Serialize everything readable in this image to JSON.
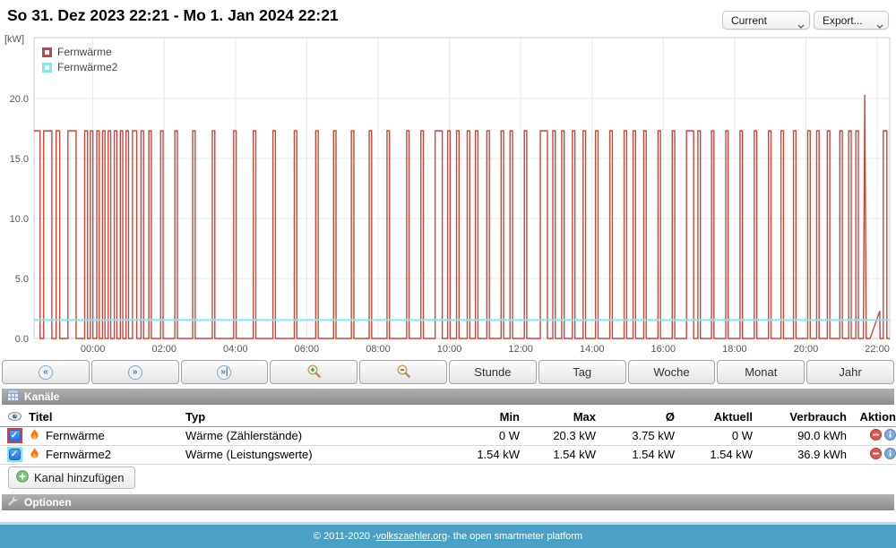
{
  "header": {
    "title": "So 31. Dez 2023 22:21 - Mo 1. Jan 2024 22:21",
    "view_select": {
      "value": "Current"
    },
    "export_select": {
      "value": "Export..."
    }
  },
  "chart_data": {
    "type": "line",
    "title": "",
    "unit_label": "[kW]",
    "xlabel": "",
    "ylabel": "kW",
    "ylim": [
      0,
      25.07
    ],
    "xlim_hours": [
      0,
      24
    ],
    "grid": true,
    "legend_position": "top-left",
    "x_ticks": [
      {
        "label": "00:00",
        "hour": 1.65
      },
      {
        "label": "02:00",
        "hour": 3.65
      },
      {
        "label": "04:00",
        "hour": 5.65
      },
      {
        "label": "06:00",
        "hour": 7.65
      },
      {
        "label": "08:00",
        "hour": 9.65
      },
      {
        "label": "10:00",
        "hour": 11.65
      },
      {
        "label": "12:00",
        "hour": 13.65
      },
      {
        "label": "14:00",
        "hour": 15.65
      },
      {
        "label": "16:00",
        "hour": 17.65
      },
      {
        "label": "18:00",
        "hour": 19.65
      },
      {
        "label": "20:00",
        "hour": 21.65
      },
      {
        "label": "22:00",
        "hour": 23.65
      }
    ],
    "y_ticks": [
      {
        "label": "0.0",
        "value": 0
      },
      {
        "label": "5.0",
        "value": 5
      },
      {
        "label": "10.0",
        "value": 10
      },
      {
        "label": "15.0",
        "value": 15
      },
      {
        "label": "20.0",
        "value": 20
      }
    ],
    "series": [
      {
        "name": "Fernwärme",
        "color": "#c9463c",
        "kind": "square-pulses",
        "pulse_level": 17.3,
        "pulses": [
          [
            0,
            0.17
          ],
          [
            0.27,
            0.5
          ],
          [
            0.62,
            0.72
          ],
          [
            0.95,
            1.18
          ],
          [
            1.42,
            1.5
          ],
          [
            1.58,
            1.65
          ],
          [
            1.76,
            1.83
          ],
          [
            1.92,
            1.99
          ],
          [
            2.08,
            2.15
          ],
          [
            2.25,
            2.32
          ],
          [
            2.42,
            2.49
          ],
          [
            2.58,
            2.65
          ],
          [
            2.76,
            2.88
          ],
          [
            3,
            3.07
          ],
          [
            3.22,
            3.29
          ],
          [
            3.55,
            3.62
          ],
          [
            3.95,
            4.02
          ],
          [
            4.45,
            4.52
          ],
          [
            5,
            5.07
          ],
          [
            5.6,
            5.67
          ],
          [
            6.15,
            6.22
          ],
          [
            6.7,
            6.77
          ],
          [
            7.3,
            7.37
          ],
          [
            7.9,
            7.97
          ],
          [
            8.4,
            8.47
          ],
          [
            8.9,
            8.97
          ],
          [
            9.4,
            9.47
          ],
          [
            9.9,
            9.97
          ],
          [
            10.45,
            10.52
          ],
          [
            10.85,
            10.92
          ],
          [
            11.25,
            11.45
          ],
          [
            11.6,
            11.67
          ],
          [
            11.85,
            11.92
          ],
          [
            12.15,
            12.22
          ],
          [
            12.38,
            12.45
          ],
          [
            12.7,
            12.77
          ],
          [
            13.1,
            13.17
          ],
          [
            13.35,
            13.42
          ],
          [
            13.75,
            13.82
          ],
          [
            14.2,
            14.4
          ],
          [
            14.55,
            14.62
          ],
          [
            14.8,
            14.87
          ],
          [
            15.1,
            15.17
          ],
          [
            15.4,
            15.47
          ],
          [
            15.75,
            15.82
          ],
          [
            16.15,
            16.22
          ],
          [
            16.55,
            16.62
          ],
          [
            16.8,
            16.87
          ],
          [
            17.1,
            17.17
          ],
          [
            17.5,
            17.57
          ],
          [
            17.9,
            17.97
          ],
          [
            18.3,
            18.5
          ],
          [
            18.62,
            18.69
          ],
          [
            19,
            19.07
          ],
          [
            19.4,
            19.47
          ],
          [
            19.8,
            19.87
          ],
          [
            20.2,
            20.27
          ],
          [
            20.6,
            20.67
          ],
          [
            20.95,
            21.02
          ],
          [
            21.3,
            21.37
          ],
          [
            21.7,
            21.77
          ],
          [
            21.95,
            22.02
          ],
          [
            22.25,
            22.32
          ],
          [
            22.6,
            22.67
          ],
          [
            22.85,
            22.92
          ],
          [
            23.05,
            23.12
          ]
        ],
        "spike": {
          "peak_hour": 23.3,
          "value": 20.3,
          "half_width_hours": 0.04
        },
        "ramp": {
          "start_hour": 23.45,
          "end_hour": 23.72,
          "peak_value": 2.3
        },
        "end_pulse": [
          23.82,
          23.92
        ]
      },
      {
        "name": "Fernwärme2",
        "color": "#7fe9ee",
        "kind": "constant",
        "value": 1.54
      }
    ]
  },
  "toolbar": {
    "nav": {
      "back": "«",
      "forward": "»",
      "jump_end": "»|"
    },
    "range_buttons": [
      "Stunde",
      "Tag",
      "Woche",
      "Monat",
      "Jahr"
    ]
  },
  "channels": {
    "section_title": "Kanäle",
    "columns": {
      "title": "Titel",
      "typ": "Typ",
      "min": "Min",
      "max": "Max",
      "avg": "Ø",
      "current": "Aktuell",
      "consumption": "Verbrauch",
      "action": "Aktion"
    },
    "rows": [
      {
        "checked": "✓",
        "color": "#c9463c",
        "title": "Fernwärme",
        "typ": "Wärme (Zählerstände)",
        "min": "0 W",
        "max": "20.3 kW",
        "avg": "3.75 kW",
        "current": "0 W",
        "consumption": "90.0 kWh"
      },
      {
        "checked": "✓",
        "color": "#7fe9ee",
        "title": "Fernwärme2",
        "typ": "Wärme (Leistungswerte)",
        "min": "1.54 kW",
        "max": "1.54 kW",
        "avg": "1.54 kW",
        "current": "1.54 kW",
        "consumption": "36.9 kWh"
      }
    ],
    "add_button_label": "Kanal hinzufügen"
  },
  "options_section": {
    "title": "Optionen"
  },
  "footer": {
    "prefix": "© 2011-2020 - ",
    "link": "volkszaehler.org",
    "suffix": " - the open smartmeter platform"
  }
}
